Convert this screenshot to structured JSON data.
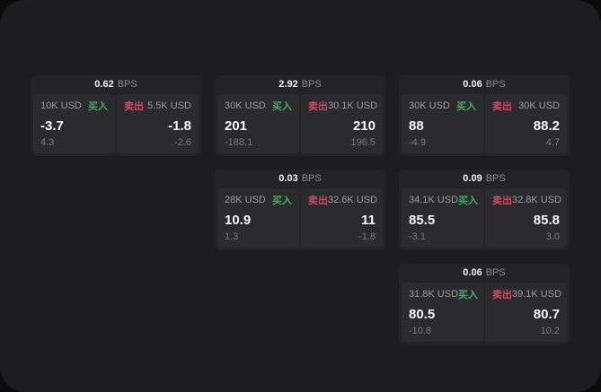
{
  "labels": {
    "bps_unit": "BPS",
    "buy": "买入",
    "sell": "卖出"
  },
  "colors": {
    "background": "#0b0b0c",
    "panel": "#1d1d1f",
    "card": "#242427",
    "tile": "#2b2b2e",
    "buy_accent": "#3fae63",
    "sell_accent": "#cf4a66",
    "primary_text": "#f5f5f7",
    "muted_text": "#9a9aa0"
  },
  "cards": [
    {
      "bps": "0.62",
      "buy": {
        "amount": "10K USD",
        "price": "-3.7",
        "delta": "4.3"
      },
      "sell": {
        "amount": "5.5K USD",
        "price": "-1.8",
        "delta": "-2.6"
      }
    },
    {
      "bps": "2.92",
      "buy": {
        "amount": "30K USD",
        "price": "201",
        "delta": "-188.1"
      },
      "sell": {
        "amount": "30.1K USD",
        "price": "210",
        "delta": "196.5"
      }
    },
    {
      "bps": "0.06",
      "buy": {
        "amount": "30K USD",
        "price": "88",
        "delta": "-4.9"
      },
      "sell": {
        "amount": "30K USD",
        "price": "88.2",
        "delta": "4.7"
      }
    },
    {
      "bps": "0.03",
      "buy": {
        "amount": "28K USD",
        "price": "10.9",
        "delta": "1.3"
      },
      "sell": {
        "amount": "32.6K USD",
        "price": "11",
        "delta": "-1.8"
      }
    },
    {
      "bps": "0.09",
      "buy": {
        "amount": "34.1K USD",
        "price": "85.5",
        "delta": "-3.1"
      },
      "sell": {
        "amount": "32.8K USD",
        "price": "85.8",
        "delta": "3.0"
      }
    },
    {
      "bps": "0.06",
      "buy": {
        "amount": "31.8K USD",
        "price": "80.5",
        "delta": "-10.8"
      },
      "sell": {
        "amount": "39.1K USD",
        "price": "80.7",
        "delta": "10.2"
      }
    }
  ]
}
